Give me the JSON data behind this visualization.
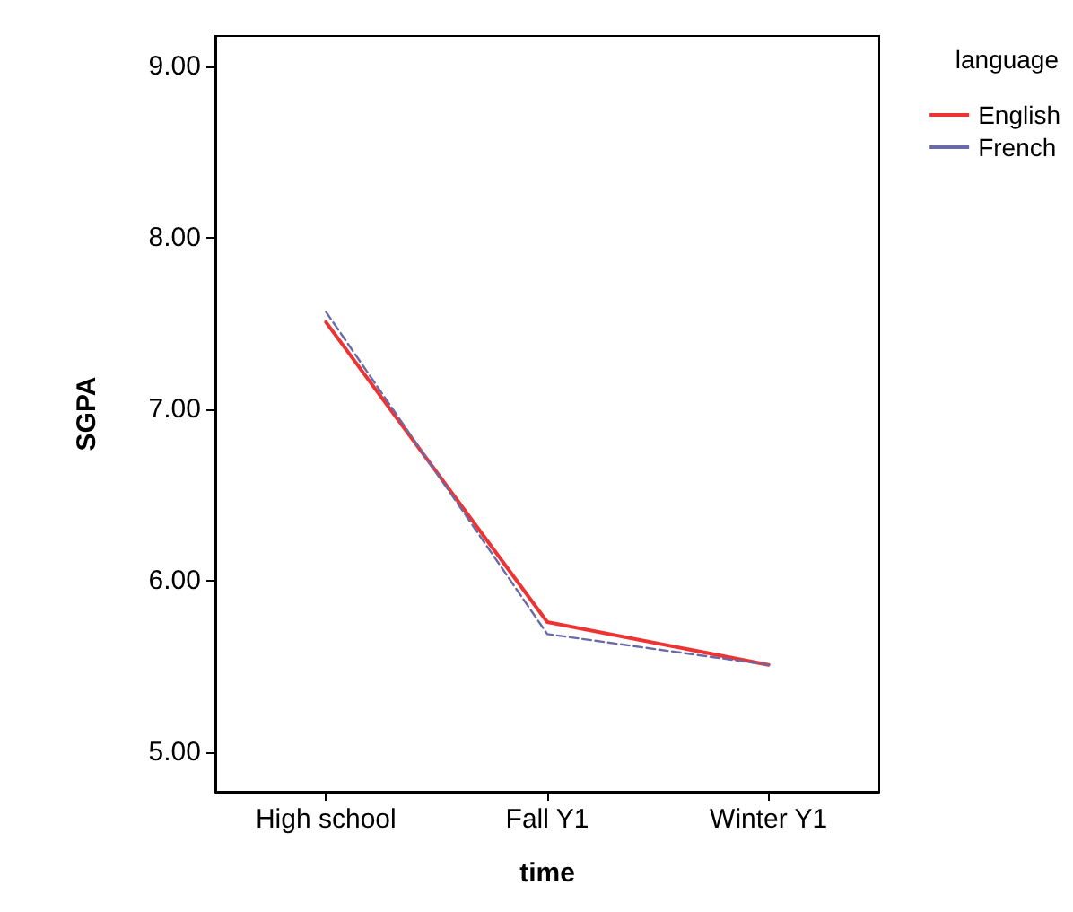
{
  "chart_data": {
    "type": "line",
    "xlabel": "time",
    "ylabel": "SGPA",
    "legend_title": "language",
    "categories": [
      "High school",
      "Fall Y1",
      "Winter Y1"
    ],
    "series": [
      {
        "name": "English",
        "color": "#ee3333",
        "values": [
          7.51,
          5.76,
          5.51
        ],
        "line_style": "solid"
      },
      {
        "name": "French",
        "color": "#6a6aa8",
        "values": [
          7.57,
          5.69,
          5.51
        ],
        "line_style": "dashed"
      }
    ],
    "ylim": [
      4.77,
      9.18
    ],
    "yticks": [
      {
        "value": 5,
        "label": "5.00"
      },
      {
        "value": 6,
        "label": "6.00"
      },
      {
        "value": 7,
        "label": "7.00"
      },
      {
        "value": 8,
        "label": "8.00"
      },
      {
        "value": 9,
        "label": "9.00"
      }
    ],
    "grid": false,
    "legend": "top right",
    "marker": "none"
  }
}
